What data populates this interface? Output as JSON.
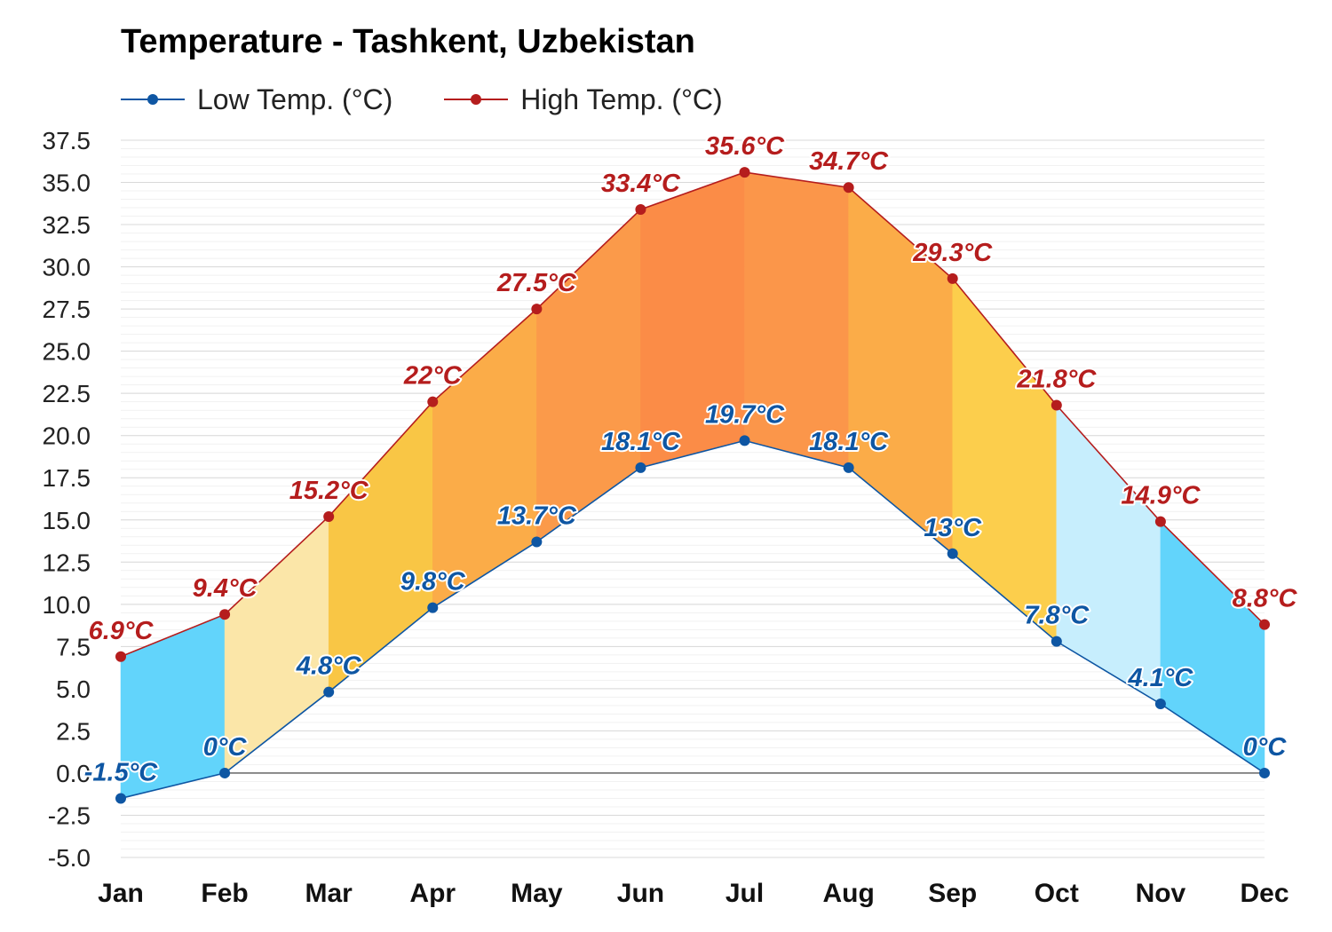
{
  "chart_data": {
    "type": "line",
    "title": "Temperature - Tashkent, Uzbekistan",
    "categories": [
      "Jan",
      "Feb",
      "Mar",
      "Apr",
      "May",
      "Jun",
      "Jul",
      "Aug",
      "Sep",
      "Oct",
      "Nov",
      "Dec"
    ],
    "series": [
      {
        "name": "Low Temp. (°C)",
        "color": "#0e56a3",
        "values": [
          -1.5,
          0,
          4.8,
          9.8,
          13.7,
          18.1,
          19.7,
          18.1,
          13,
          7.8,
          4.1,
          0
        ],
        "labels": [
          "-1.5°C",
          "0°C",
          "4.8°C",
          "9.8°C",
          "13.7°C",
          "18.1°C",
          "19.7°C",
          "18.1°C",
          "13°C",
          "7.8°C",
          "4.1°C",
          "0°C"
        ]
      },
      {
        "name": "High Temp. (°C)",
        "color": "#b51d1d",
        "values": [
          6.9,
          9.4,
          15.2,
          22,
          27.5,
          33.4,
          35.6,
          34.7,
          29.3,
          21.8,
          14.9,
          8.8
        ],
        "labels": [
          "6.9°C",
          "9.4°C",
          "15.2°C",
          "22°C",
          "27.5°C",
          "33.4°C",
          "35.6°C",
          "34.7°C",
          "29.3°C",
          "21.8°C",
          "14.9°C",
          "8.8°C"
        ]
      }
    ],
    "band_colors": [
      "#62d4fb",
      "#fbe6a8",
      "#f9c645",
      "#fbac48",
      "#fb9a4a",
      "#fb8c47",
      "#fb964a",
      "#fbac48",
      "#fcce4c",
      "#c7eefd",
      "#62d4fb"
    ],
    "ylim": [
      -5,
      37.5
    ],
    "yticks": [
      "37.5",
      "35.0",
      "32.5",
      "30.0",
      "27.5",
      "25.0",
      "22.5",
      "20.0",
      "17.5",
      "15.0",
      "12.5",
      "10.0",
      "7.5",
      "5.0",
      "2.5",
      "0.0",
      "-2.5",
      "-5.0"
    ],
    "xlabel": "",
    "ylabel": "",
    "grid": true,
    "legend_position": "top-left"
  }
}
